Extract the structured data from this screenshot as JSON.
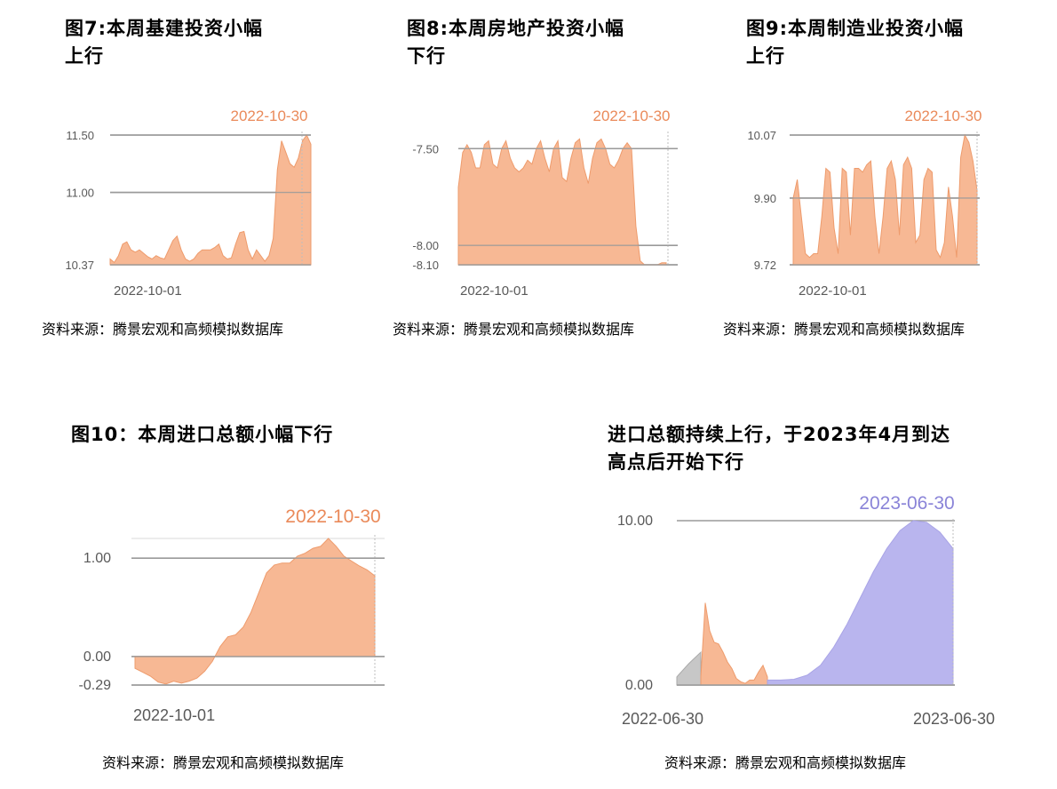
{
  "charts": {
    "fig7": {
      "title_line1": "图7:本周基建投资小幅",
      "title_line2": "上行",
      "source": "资料来源：腾景宏观和高频模拟数据库"
    },
    "fig8": {
      "title_line1": "图8:本周房地产投资小幅",
      "title_line2": "下行",
      "source": "资料来源：腾景宏观和高频模拟数据库"
    },
    "fig9": {
      "title_line1": "图9:本周制造业投资小幅",
      "title_line2": "上行",
      "source": "资料来源：腾景宏观和高频模拟数据库"
    },
    "fig10": {
      "title_line1": "图10：本周进口总额小幅下行",
      "source": "资料来源：腾景宏观和高频模拟数据库"
    },
    "fig11": {
      "title_line1": "进口总额持续上行，于2023年4月到达",
      "title_line2": "高点后开始下行",
      "source": "资料来源：腾景宏观和高频模拟数据库"
    }
  },
  "colors": {
    "orange_fill": "#f7b894",
    "orange_line": "#ee9b6c",
    "orange_label": "#ea8a5a",
    "purple_fill": "#b9b5ee",
    "purple_label": "#8a84d8",
    "gray_fill": "#c7c7c7",
    "grid": "#9a9a9a"
  },
  "chart_data": [
    {
      "id": "fig7",
      "type": "area",
      "title": "图7:本周基建投资小幅上行",
      "x_start_label": "2022-10-01",
      "x_end_label": "2022-10-30",
      "y_ticks": [
        "11.50",
        "11.00",
        "10.37"
      ],
      "y_tick_values": [
        11.5,
        11.0,
        10.37
      ],
      "ylim": [
        10.37,
        11.5
      ],
      "series": [
        {
          "values": [
            10.42,
            10.39,
            10.45,
            10.55,
            10.57,
            10.5,
            10.48,
            10.5,
            10.47,
            10.44,
            10.42,
            10.45,
            10.43,
            10.42,
            10.5,
            10.58,
            10.62,
            10.5,
            10.42,
            10.4,
            10.42,
            10.47,
            10.5,
            10.5,
            10.5,
            10.52,
            10.55,
            10.45,
            10.42,
            10.43,
            10.55,
            10.65,
            10.66,
            10.5,
            10.42,
            10.5,
            10.45,
            10.4,
            10.45,
            10.6,
            11.2,
            11.45,
            11.35,
            11.25,
            11.22,
            11.3,
            11.45,
            11.5,
            11.42
          ]
        }
      ]
    },
    {
      "id": "fig8",
      "type": "area",
      "title": "图8:本周房地产投资小幅下行",
      "x_start_label": "2022-10-01",
      "x_end_label": "2022-10-30",
      "y_ticks": [
        "-7.50",
        "-8.00",
        "-8.10"
      ],
      "y_tick_values": [
        -7.5,
        -8.0,
        -8.1
      ],
      "ylim": [
        -8.1,
        -7.43
      ],
      "series": [
        {
          "values": [
            -7.7,
            -7.52,
            -7.48,
            -7.52,
            -7.6,
            -7.6,
            -7.48,
            -7.46,
            -7.58,
            -7.6,
            -7.5,
            -7.46,
            -7.55,
            -7.6,
            -7.62,
            -7.6,
            -7.56,
            -7.58,
            -7.5,
            -7.46,
            -7.55,
            -7.62,
            -7.5,
            -7.46,
            -7.65,
            -7.67,
            -7.55,
            -7.47,
            -7.45,
            -7.6,
            -7.68,
            -7.55,
            -7.47,
            -7.45,
            -7.5,
            -7.58,
            -7.6,
            -7.56,
            -7.5,
            -7.47,
            -7.5,
            -7.9,
            -8.08,
            -8.1,
            -8.1,
            -8.1,
            -8.1,
            -8.09,
            -8.09
          ]
        }
      ]
    },
    {
      "id": "fig9",
      "type": "area",
      "title": "图9:本周制造业投资小幅上行",
      "x_start_label": "2022-10-01",
      "x_end_label": "2022-10-30",
      "y_ticks": [
        "10.07",
        "9.90",
        "9.72"
      ],
      "y_tick_values": [
        10.07,
        9.9,
        9.72
      ],
      "ylim": [
        9.72,
        10.07
      ],
      "series": [
        {
          "values": [
            9.9,
            9.95,
            9.85,
            9.75,
            9.74,
            9.75,
            9.75,
            9.85,
            9.98,
            9.97,
            9.82,
            9.75,
            9.98,
            9.97,
            9.8,
            9.98,
            9.98,
            9.97,
            9.99,
            10.0,
            9.85,
            9.75,
            9.85,
            9.98,
            10.0,
            9.95,
            9.8,
            9.99,
            10.01,
            9.98,
            9.78,
            9.8,
            9.95,
            9.98,
            9.97,
            9.76,
            9.74,
            9.78,
            9.93,
            9.85,
            9.74,
            10.01,
            10.07,
            10.05,
            10.0,
            9.92
          ]
        }
      ]
    },
    {
      "id": "fig10",
      "type": "area",
      "title": "图10：本周进口总额小幅下行",
      "x_start_label": "2022-10-01",
      "x_end_label": "2022-10-30",
      "y_ticks": [
        "1.00",
        "0.00",
        "-0.29"
      ],
      "y_tick_values": [
        1.0,
        0.0,
        -0.29
      ],
      "ylim": [
        -0.29,
        1.2
      ],
      "series": [
        {
          "values": [
            -0.12,
            -0.16,
            -0.2,
            -0.26,
            -0.28,
            -0.25,
            -0.27,
            -0.25,
            -0.22,
            -0.15,
            -0.05,
            0.1,
            0.2,
            0.22,
            0.3,
            0.45,
            0.65,
            0.85,
            0.93,
            0.95,
            0.95,
            1.02,
            1.05,
            1.1,
            1.12,
            1.2,
            1.12,
            1.02,
            0.97,
            0.92,
            0.88,
            0.82
          ]
        }
      ]
    },
    {
      "id": "fig11",
      "type": "area",
      "title": "进口总额持续上行，于2023年4月到达高点后开始下行",
      "x_start_label": "2022-06-30",
      "x_end_label": "2023-06-30",
      "y_ticks": [
        "10.00",
        "0.00"
      ],
      "y_tick_values": [
        10.0,
        0.0
      ],
      "ylim": [
        0,
        10.0
      ],
      "highlight_label": "2023-06-30",
      "series": [
        {
          "name": "gray",
          "values": [
            0.5,
            1.3,
            2.0
          ]
        },
        {
          "name": "orange",
          "values": [
            0.5,
            5.0,
            3.3,
            2.6,
            2.5,
            2.0,
            1.4,
            1.0,
            0.4,
            0.2,
            0.1,
            0.3,
            0.3,
            0.8,
            1.2,
            0.5
          ]
        },
        {
          "name": "purple",
          "values": [
            0.3,
            0.3,
            0.35,
            0.6,
            1.2,
            2.3,
            3.7,
            5.3,
            6.9,
            8.3,
            9.4,
            10.0,
            9.9,
            9.3,
            8.3
          ]
        }
      ]
    }
  ]
}
